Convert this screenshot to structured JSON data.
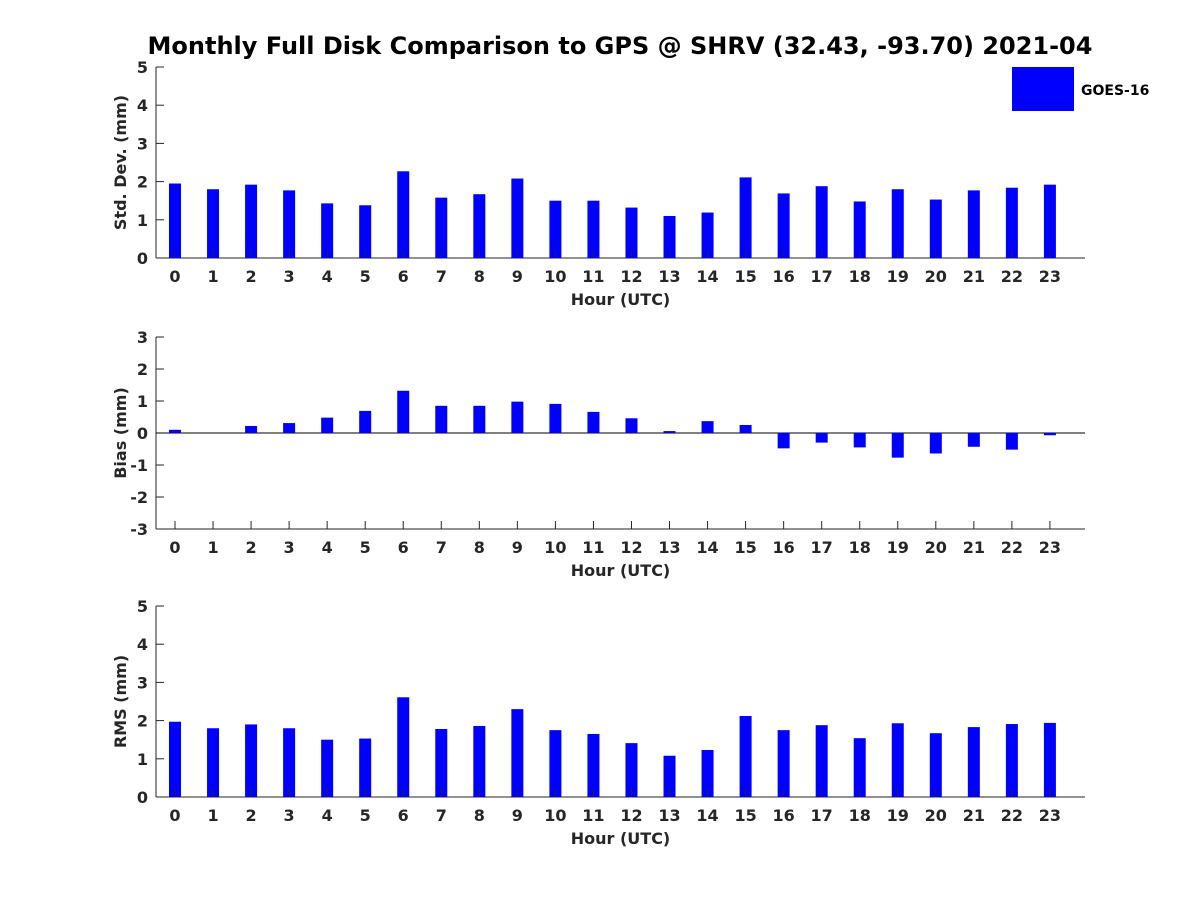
{
  "title": "Monthly Full Disk Comparison to GPS @ SHRV (32.43, -93.70) 2021-04",
  "legend": {
    "label": "GOES-16",
    "color": "#0000ff"
  },
  "chart_data": [
    {
      "type": "bar",
      "xlabel": "Hour (UTC)",
      "ylabel": "Std. Dev. (mm)",
      "ylim": [
        0,
        5
      ],
      "yticks": [
        0,
        1,
        2,
        3,
        4,
        5
      ],
      "categories": [
        "0",
        "1",
        "2",
        "3",
        "4",
        "5",
        "6",
        "7",
        "8",
        "9",
        "10",
        "11",
        "12",
        "13",
        "14",
        "15",
        "16",
        "17",
        "18",
        "19",
        "20",
        "21",
        "22",
        "23"
      ],
      "series": [
        {
          "name": "GOES-16",
          "color": "#0000ff",
          "values": [
            1.95,
            1.8,
            1.92,
            1.77,
            1.43,
            1.38,
            2.27,
            1.58,
            1.67,
            2.08,
            1.5,
            1.5,
            1.32,
            1.1,
            1.19,
            2.11,
            1.69,
            1.88,
            1.48,
            1.8,
            1.53,
            1.77,
            1.84,
            1.92
          ]
        }
      ],
      "legend": "top-right"
    },
    {
      "type": "bar",
      "xlabel": "Hour (UTC)",
      "ylabel": "Bias (mm)",
      "ylim": [
        -3,
        3
      ],
      "yticks": [
        -3,
        -2,
        -1,
        0,
        1,
        2,
        3
      ],
      "zero_line": true,
      "categories": [
        "0",
        "1",
        "2",
        "3",
        "4",
        "5",
        "6",
        "7",
        "8",
        "9",
        "10",
        "11",
        "12",
        "13",
        "14",
        "15",
        "16",
        "17",
        "18",
        "19",
        "20",
        "21",
        "22",
        "23"
      ],
      "series": [
        {
          "name": "GOES-16",
          "color": "#0000ff",
          "values": [
            0.1,
            0.0,
            0.22,
            0.31,
            0.48,
            0.69,
            1.32,
            0.85,
            0.85,
            0.98,
            0.91,
            0.66,
            0.46,
            0.06,
            0.37,
            0.25,
            -0.48,
            -0.3,
            -0.45,
            -0.77,
            -0.64,
            -0.43,
            -0.52,
            -0.07
          ]
        }
      ]
    },
    {
      "type": "bar",
      "xlabel": "Hour (UTC)",
      "ylabel": "RMS (mm)",
      "ylim": [
        0,
        5
      ],
      "yticks": [
        0,
        1,
        2,
        3,
        4,
        5
      ],
      "categories": [
        "0",
        "1",
        "2",
        "3",
        "4",
        "5",
        "6",
        "7",
        "8",
        "9",
        "10",
        "11",
        "12",
        "13",
        "14",
        "15",
        "16",
        "17",
        "18",
        "19",
        "20",
        "21",
        "22",
        "23"
      ],
      "series": [
        {
          "name": "GOES-16",
          "color": "#0000ff",
          "values": [
            1.97,
            1.8,
            1.9,
            1.8,
            1.5,
            1.53,
            2.61,
            1.78,
            1.86,
            2.3,
            1.75,
            1.65,
            1.41,
            1.08,
            1.23,
            2.12,
            1.75,
            1.88,
            1.54,
            1.93,
            1.67,
            1.83,
            1.91,
            1.94
          ]
        }
      ]
    }
  ]
}
